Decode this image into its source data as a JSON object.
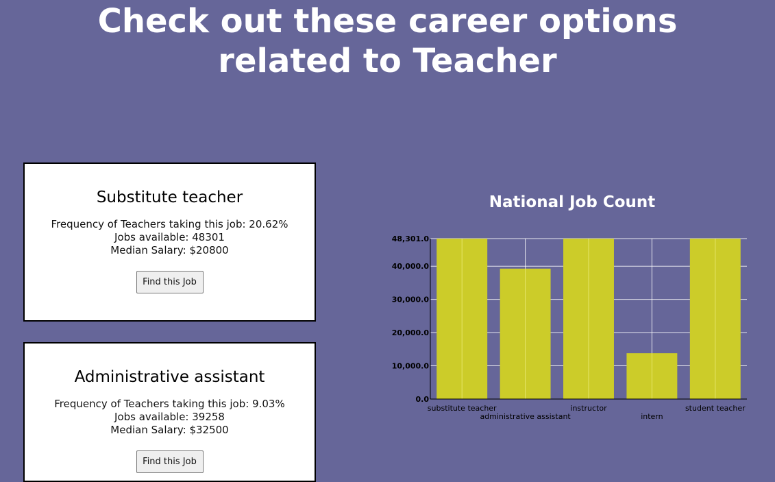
{
  "header": {
    "title": "Check out these career options related to Teacher"
  },
  "cards": [
    {
      "title": "Substitute teacher",
      "frequency": "Frequency of Teachers taking this job: 20.62%",
      "jobs": "Jobs available: 48301",
      "salary": "Median Salary: $20800",
      "button": "Find this Job"
    },
    {
      "title": "Administrative assistant",
      "frequency": "Frequency of Teachers taking this job: 9.03%",
      "jobs": "Jobs available: 39258",
      "salary": "Median Salary: $32500",
      "button": "Find this Job"
    }
  ],
  "colors": {
    "background": "#666699",
    "bar": "#cccc29",
    "grid": "#ffffff"
  },
  "chart_data": {
    "type": "bar",
    "title": "National Job Count",
    "categories": [
      "substitute teacher",
      "administrative assistant",
      "instructor",
      "intern",
      "student teacher"
    ],
    "values": [
      48301,
      39258,
      48301,
      13800,
      48301
    ],
    "ylim": [
      0,
      48301
    ],
    "yticks": [
      0,
      10000,
      20000,
      30000,
      40000,
      48301
    ],
    "ytick_labels": [
      "0.0",
      "10,000.0",
      "20,000.0",
      "30,000.0",
      "40,000.0",
      "48,301.0"
    ],
    "xlabel": "",
    "ylabel": "",
    "grid": true
  }
}
